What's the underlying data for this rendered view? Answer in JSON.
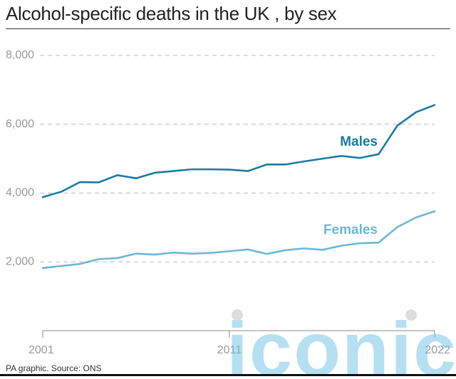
{
  "title": "Alcohol-specific deaths in the UK , by sex",
  "footer": "PA graphic. Source: ONS",
  "watermark": "iconic",
  "colors": {
    "males": "#1a7aa6",
    "females": "#6cb7d6",
    "grid": "#bbbbbb",
    "axis_text": "#999999",
    "watermark": "#6ec3e6"
  },
  "chart_data": {
    "type": "line",
    "title": "Alcohol-specific deaths in the UK , by sex",
    "xlabel": "",
    "ylabel": "",
    "x": [
      2001,
      2002,
      2003,
      2004,
      2005,
      2006,
      2007,
      2008,
      2009,
      2010,
      2011,
      2012,
      2013,
      2014,
      2015,
      2016,
      2017,
      2018,
      2019,
      2020,
      2021,
      2022
    ],
    "xticks": [
      "2001",
      "2011",
      "2022"
    ],
    "ylim": [
      0,
      8000
    ],
    "yticks": [
      "2,000",
      "4,000",
      "6,000",
      "8,000"
    ],
    "ytick_values": [
      2000,
      4000,
      6000,
      8000
    ],
    "grid": true,
    "series": [
      {
        "name": "Males",
        "values": [
          3880,
          4040,
          4320,
          4310,
          4520,
          4430,
          4590,
          4640,
          4690,
          4690,
          4680,
          4640,
          4830,
          4830,
          4920,
          5000,
          5080,
          5020,
          5130,
          5960,
          6350,
          6560
        ]
      },
      {
        "name": "Females",
        "values": [
          1820,
          1880,
          1940,
          2080,
          2110,
          2240,
          2210,
          2270,
          2240,
          2260,
          2310,
          2360,
          2230,
          2340,
          2390,
          2350,
          2470,
          2540,
          2560,
          3010,
          3290,
          3470
        ]
      }
    ]
  }
}
